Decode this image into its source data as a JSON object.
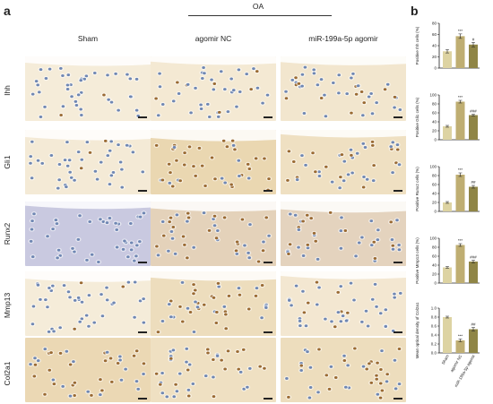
{
  "figure": {
    "panel_a_label": "a",
    "panel_b_label": "b",
    "group_header": "OA",
    "columns": [
      "Sham",
      "agomir NC",
      "miR-199a-5p agomir"
    ],
    "rows": [
      "Ihh",
      "Gli1",
      "Runx2",
      "Mmp13",
      "Col2a1"
    ]
  },
  "colors": {
    "sham_bar": "#ddd3a2",
    "nc_bar": "#bfae72",
    "agomir_bar": "#8f8546",
    "cartilage_light": "#f6eddc",
    "cartilage_stained": "#e6cfa3",
    "hematoxylin": "#6f87b3",
    "dab": "#9a6a33"
  },
  "chart_data": [
    {
      "type": "bar",
      "categories": [
        "Sham",
        "agomir NC",
        "miR-199a-5p agomir"
      ],
      "values": [
        30,
        57,
        42
      ],
      "errors": [
        3,
        4,
        4
      ],
      "annotations": [
        "",
        "***",
        "#"
      ],
      "ylabel": "Positive Ihh cells (%)",
      "ylim": [
        0,
        80
      ],
      "yticks": [
        "0",
        "20",
        "40",
        "60",
        "80"
      ]
    },
    {
      "type": "bar",
      "categories": [
        "Sham",
        "agomir NC",
        "miR-199a-5p agomir"
      ],
      "values": [
        30,
        85,
        55
      ],
      "errors": [
        2,
        3,
        2
      ],
      "annotations": [
        "",
        "***",
        "###"
      ],
      "ylabel": "Positive Gli1 cells (%)",
      "ylim": [
        0,
        100
      ],
      "yticks": [
        "0",
        "20",
        "40",
        "60",
        "80",
        "100"
      ]
    },
    {
      "type": "bar",
      "categories": [
        "Sham",
        "agomir NC",
        "miR-199a-5p agomir"
      ],
      "values": [
        20,
        82,
        55
      ],
      "errors": [
        2,
        4,
        3
      ],
      "annotations": [
        "",
        "***",
        "##"
      ],
      "ylabel": "Positive Runx2 cells (%)",
      "ylim": [
        0,
        100
      ],
      "yticks": [
        "0",
        "20",
        "40",
        "60",
        "80",
        "100"
      ]
    },
    {
      "type": "bar",
      "categories": [
        "Sham",
        "agomir NC",
        "miR-199a-5p agomir"
      ],
      "values": [
        35,
        85,
        48
      ],
      "errors": [
        2,
        3,
        3
      ],
      "annotations": [
        "",
        "***",
        "###"
      ],
      "ylabel": "Positive Mmp13 cells (%)",
      "ylim": [
        0,
        100
      ],
      "yticks": [
        "0",
        "20",
        "40",
        "60",
        "80",
        "100"
      ]
    },
    {
      "type": "bar",
      "categories": [
        "Sham",
        "agomir NC",
        "miR-199a-5p agomir"
      ],
      "values": [
        0.8,
        0.28,
        0.53
      ],
      "errors": [
        0.02,
        0.03,
        0.04
      ],
      "annotations": [
        "",
        "***",
        "##"
      ],
      "ylabel": "Mean optical density of Col2a1",
      "ylim": [
        0,
        1.0
      ],
      "yticks": [
        "0.0",
        "0.2",
        "0.4",
        "0.6",
        "0.8",
        "1.0"
      ]
    }
  ]
}
